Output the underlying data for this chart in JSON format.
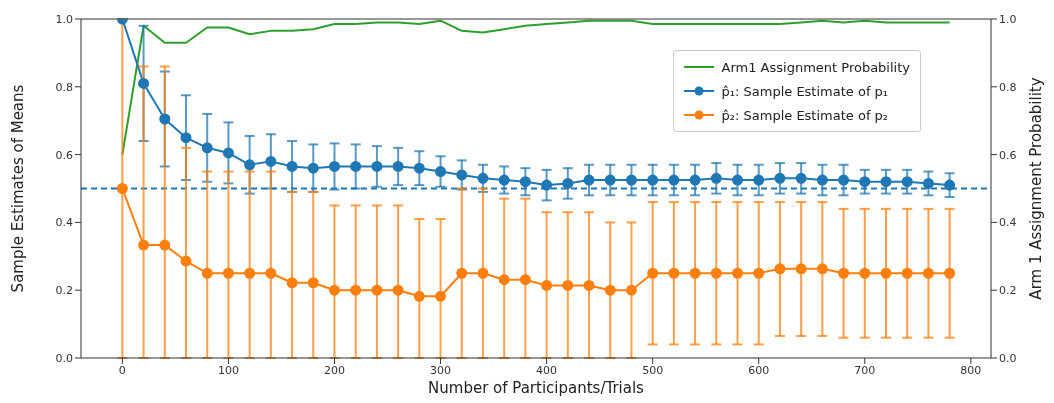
{
  "chart_data": {
    "type": "line",
    "xlabel": "Number of Participants/Trials",
    "ylabel": "Sample Estimates of Means",
    "y2label": "Arm 1 Assignment Probability",
    "x": [
      0,
      20,
      40,
      60,
      80,
      100,
      120,
      140,
      160,
      180,
      200,
      220,
      240,
      260,
      280,
      300,
      320,
      340,
      360,
      380,
      400,
      420,
      440,
      460,
      480,
      500,
      520,
      540,
      560,
      580,
      600,
      620,
      640,
      660,
      680,
      700,
      720,
      740,
      760,
      780
    ],
    "series": [
      {
        "name": "Arm1 Assignment Probability",
        "color": "#2ca02c",
        "axis": "y2",
        "marker": "none",
        "values": [
          0.6,
          0.98,
          0.93,
          0.93,
          0.975,
          0.975,
          0.955,
          0.965,
          0.965,
          0.97,
          0.985,
          0.985,
          0.99,
          0.99,
          0.985,
          0.995,
          0.965,
          0.96,
          0.97,
          0.98,
          0.985,
          0.99,
          0.995,
          0.995,
          0.995,
          0.985,
          0.985,
          0.985,
          0.985,
          0.985,
          0.985,
          0.985,
          0.99,
          0.995,
          0.99,
          0.995,
          0.99,
          0.99,
          0.99,
          0.99
        ]
      },
      {
        "name": "p̂₁: Sample Estimate of p₁",
        "color": "#1f77b4",
        "marker": "circle",
        "values": [
          1.0,
          0.81,
          0.705,
          0.65,
          0.62,
          0.605,
          0.57,
          0.58,
          0.565,
          0.56,
          0.565,
          0.565,
          0.565,
          0.565,
          0.56,
          0.55,
          0.54,
          0.53,
          0.525,
          0.52,
          0.51,
          0.515,
          0.525,
          0.525,
          0.525,
          0.525,
          0.525,
          0.525,
          0.53,
          0.525,
          0.525,
          0.53,
          0.53,
          0.525,
          0.525,
          0.52,
          0.52,
          0.52,
          0.515,
          0.51
        ],
        "errors": [
          null,
          0.17,
          0.14,
          0.125,
          0.1,
          0.09,
          0.085,
          0.08,
          0.075,
          0.07,
          0.068,
          0.065,
          0.06,
          0.055,
          0.05,
          0.045,
          0.043,
          0.04,
          0.04,
          0.04,
          0.045,
          0.045,
          0.045,
          0.045,
          0.045,
          0.045,
          0.045,
          0.045,
          0.045,
          0.045,
          0.045,
          0.045,
          0.045,
          0.045,
          0.045,
          0.035,
          0.035,
          0.035,
          0.035,
          0.035
        ]
      },
      {
        "name": "p̂₂: Sample Estimate of p₂",
        "color": "#ff7f0e",
        "marker": "circle",
        "values": [
          0.5,
          0.333,
          0.333,
          0.286,
          0.25,
          0.25,
          0.25,
          0.25,
          0.222,
          0.222,
          0.2,
          0.2,
          0.2,
          0.2,
          0.182,
          0.182,
          0.25,
          0.25,
          0.231,
          0.231,
          0.214,
          0.214,
          0.214,
          0.2,
          0.2,
          0.25,
          0.25,
          0.25,
          0.25,
          0.25,
          0.25,
          0.263,
          0.263,
          0.263,
          0.25,
          0.25,
          0.25,
          0.25,
          0.25,
          0.25
        ],
        "errors": [
          [
            0,
            1.0
          ],
          [
            0,
            0.86
          ],
          [
            0,
            0.86
          ],
          [
            0,
            0.62
          ],
          [
            0,
            0.55
          ],
          [
            0,
            0.55
          ],
          [
            0,
            0.55
          ],
          [
            0,
            0.55
          ],
          [
            0,
            0.49
          ],
          [
            0,
            0.49
          ],
          [
            0,
            0.45
          ],
          [
            0,
            0.45
          ],
          [
            0,
            0.45
          ],
          [
            0,
            0.45
          ],
          [
            0,
            0.41
          ],
          [
            0,
            0.41
          ],
          [
            0,
            0.5
          ],
          [
            0,
            0.5
          ],
          [
            0,
            0.47
          ],
          [
            0,
            0.47
          ],
          [
            0,
            0.43
          ],
          [
            0,
            0.43
          ],
          [
            0,
            0.43
          ],
          [
            0,
            0.4
          ],
          [
            0,
            0.4
          ],
          [
            0.04,
            0.46
          ],
          [
            0.04,
            0.46
          ],
          [
            0.04,
            0.46
          ],
          [
            0.04,
            0.46
          ],
          [
            0.04,
            0.46
          ],
          [
            0.04,
            0.46
          ],
          [
            0.065,
            0.46
          ],
          [
            0.065,
            0.46
          ],
          [
            0.065,
            0.46
          ],
          [
            0.06,
            0.44
          ],
          [
            0.06,
            0.44
          ],
          [
            0.06,
            0.44
          ],
          [
            0.06,
            0.44
          ],
          [
            0.06,
            0.44
          ],
          [
            0.06,
            0.44
          ]
        ]
      }
    ],
    "xlim": [
      -39,
      819
    ],
    "xticks": [
      0,
      100,
      200,
      300,
      400,
      500,
      600,
      700,
      800
    ],
    "ylim": [
      0,
      1
    ],
    "yticks": [
      {
        "value": 0,
        "label": "0.0"
      },
      {
        "value": 0.2,
        "label": "0.2"
      },
      {
        "value": 0.4,
        "label": "0.4"
      },
      {
        "value": 0.6,
        "label": "0.6"
      },
      {
        "value": 0.8,
        "label": "0.8"
      },
      {
        "value": 1,
        "label": "1.0"
      }
    ],
    "y2lim": [
      0,
      1
    ],
    "y2ticks": [
      {
        "value": 0,
        "label": "0.0"
      },
      {
        "value": 0.2,
        "label": "0.2"
      },
      {
        "value": 0.4,
        "label": "0.4"
      },
      {
        "value": 0.6,
        "label": "0.6"
      },
      {
        "value": 0.8,
        "label": "0.8"
      },
      {
        "value": 1,
        "label": "1.0"
      }
    ],
    "ref_lines": [
      {
        "axis": "y",
        "value": 0.5,
        "color": "#1f77b4",
        "line_style": "dashed"
      }
    ],
    "legend": "top right",
    "grid": false
  }
}
